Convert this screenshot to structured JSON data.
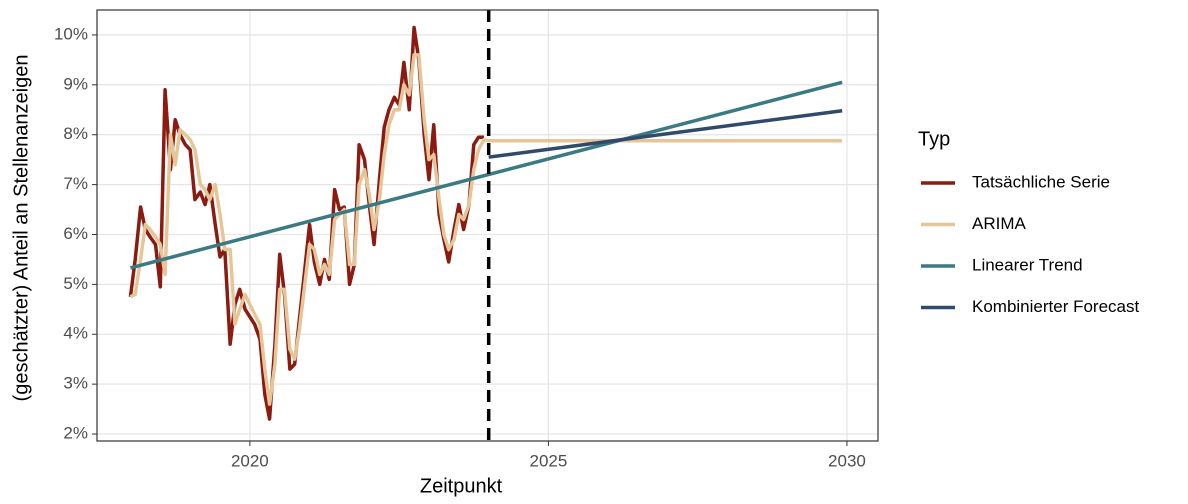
{
  "chart_data": {
    "type": "line",
    "xlabel": "Zeitpunkt",
    "ylabel": "(geschätzter) Anteil an Stellenanzeigen",
    "legend_title": "Typ",
    "legend": "right",
    "grid": true,
    "xlim": [
      2017.44,
      2030.52
    ],
    "ylim": [
      1.86,
      10.5
    ],
    "xticks": [
      2020,
      2025,
      2030
    ],
    "yticks": [
      {
        "value": 2,
        "label": "2%"
      },
      {
        "value": 3,
        "label": "3%"
      },
      {
        "value": 4,
        "label": "4%"
      },
      {
        "value": 5,
        "label": "5%"
      },
      {
        "value": 6,
        "label": "6%"
      },
      {
        "value": 7,
        "label": "7%"
      },
      {
        "value": 8,
        "label": "8%"
      },
      {
        "value": 9,
        "label": "9%"
      },
      {
        "value": 10,
        "label": "10%"
      }
    ],
    "vline": 2024,
    "series": [
      {
        "name": "Tatsächliche Serie",
        "color": "#8b1a10",
        "x": [
          2018,
          2018.08,
          2018.17,
          2018.25,
          2018.33,
          2018.42,
          2018.5,
          2018.58,
          2018.67,
          2018.75,
          2018.83,
          2018.92,
          2019,
          2019.08,
          2019.17,
          2019.25,
          2019.33,
          2019.42,
          2019.5,
          2019.58,
          2019.67,
          2019.75,
          2019.83,
          2019.92,
          2020,
          2020.08,
          2020.17,
          2020.25,
          2020.33,
          2020.42,
          2020.5,
          2020.58,
          2020.67,
          2020.75,
          2020.83,
          2020.92,
          2021,
          2021.08,
          2021.17,
          2021.25,
          2021.33,
          2021.42,
          2021.5,
          2021.58,
          2021.67,
          2021.75,
          2021.83,
          2021.92,
          2022,
          2022.08,
          2022.17,
          2022.25,
          2022.33,
          2022.42,
          2022.5,
          2022.58,
          2022.67,
          2022.75,
          2022.83,
          2022.92,
          2023,
          2023.08,
          2023.17,
          2023.25,
          2023.33,
          2023.42,
          2023.5,
          2023.58,
          2023.67,
          2023.75,
          2023.83,
          2023.92
        ],
        "values": [
          4.75,
          5.5,
          6.55,
          6.1,
          5.95,
          5.8,
          4.95,
          8.9,
          7.3,
          8.3,
          8.0,
          7.8,
          7.7,
          6.7,
          6.85,
          6.6,
          7.0,
          6.2,
          5.55,
          5.7,
          3.8,
          4.6,
          4.9,
          4.5,
          4.35,
          4.2,
          3.9,
          2.8,
          2.3,
          3.8,
          5.6,
          4.8,
          3.3,
          3.4,
          4.3,
          5.3,
          6.2,
          5.45,
          5.0,
          5.5,
          5.1,
          6.9,
          6.5,
          6.55,
          5.0,
          5.4,
          7.8,
          7.5,
          6.6,
          5.8,
          7.1,
          8.15,
          8.5,
          8.75,
          8.6,
          9.45,
          8.5,
          10.15,
          9.5,
          8.0,
          7.1,
          8.2,
          6.4,
          5.9,
          5.45,
          6.1,
          6.6,
          6.1,
          6.6,
          7.8,
          7.95,
          7.95
        ]
      },
      {
        "name": "ARIMA",
        "color": "#e6c699",
        "x": [
          2018,
          2018.08,
          2018.17,
          2018.25,
          2018.33,
          2018.42,
          2018.5,
          2018.58,
          2018.67,
          2018.75,
          2018.83,
          2018.92,
          2019,
          2019.08,
          2019.17,
          2019.25,
          2019.33,
          2019.42,
          2019.5,
          2019.58,
          2019.67,
          2019.75,
          2019.83,
          2019.92,
          2020,
          2020.08,
          2020.17,
          2020.25,
          2020.33,
          2020.42,
          2020.5,
          2020.58,
          2020.67,
          2020.75,
          2020.83,
          2020.92,
          2021,
          2021.08,
          2021.17,
          2021.25,
          2021.33,
          2021.42,
          2021.5,
          2021.58,
          2021.67,
          2021.75,
          2021.83,
          2021.92,
          2022,
          2022.08,
          2022.17,
          2022.25,
          2022.33,
          2022.42,
          2022.5,
          2022.58,
          2022.67,
          2022.75,
          2022.83,
          2022.92,
          2023,
          2023.08,
          2023.17,
          2023.25,
          2023.33,
          2023.42,
          2023.5,
          2023.58,
          2023.67,
          2023.75,
          2023.83,
          2023.92,
          2024,
          2029.92
        ],
        "values": [
          4.75,
          4.8,
          5.5,
          6.2,
          6.1,
          5.95,
          5.8,
          5.2,
          8.0,
          7.4,
          8.1,
          8.0,
          7.9,
          7.7,
          7.0,
          6.9,
          6.7,
          7.0,
          6.4,
          5.7,
          5.7,
          4.2,
          4.5,
          4.8,
          4.6,
          4.4,
          4.2,
          3.3,
          2.6,
          3.4,
          4.9,
          4.9,
          3.7,
          3.5,
          4.1,
          5.0,
          5.8,
          5.7,
          5.2,
          5.4,
          5.2,
          6.3,
          6.4,
          6.5,
          5.4,
          5.4,
          7.0,
          7.3,
          6.8,
          6.1,
          6.7,
          7.6,
          8.2,
          8.5,
          8.5,
          9.0,
          8.8,
          9.6,
          9.6,
          8.3,
          7.5,
          7.6,
          6.7,
          6.0,
          5.7,
          5.9,
          6.4,
          6.3,
          6.6,
          7.3,
          7.7,
          7.9,
          7.88,
          7.88
        ]
      },
      {
        "name": "Linearer Trend",
        "color": "#3a7a82",
        "x": [
          2018,
          2029.92
        ],
        "values": [
          5.33,
          9.05
        ]
      },
      {
        "name": "Kombinierter Forecast",
        "color": "#2f4a6b",
        "x": [
          2024,
          2029.92
        ],
        "values": [
          7.55,
          8.48
        ]
      }
    ]
  }
}
